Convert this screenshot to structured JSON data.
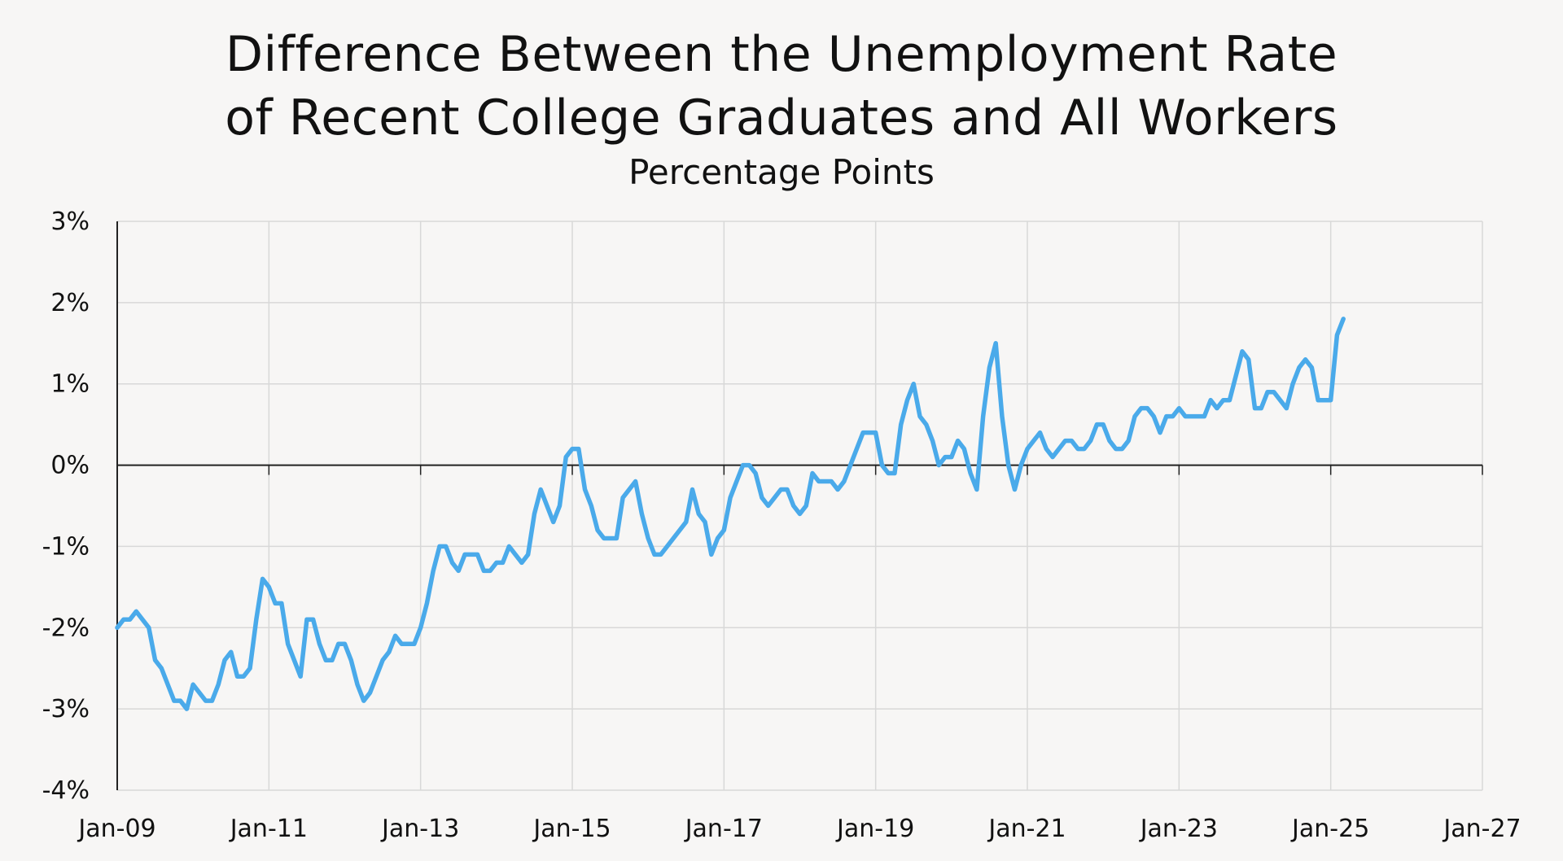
{
  "chart_data": {
    "type": "line",
    "title": "Difference Between the Unemployment Rate",
    "title_line2": "of Recent College Graduates and All Workers",
    "subtitle": "Percentage Points",
    "x_tick_labels": [
      "Jan-09",
      "Jan-11",
      "Jan-13",
      "Jan-15",
      "Jan-17",
      "Jan-19",
      "Jan-21",
      "Jan-23",
      "Jan-25",
      "Jan-27"
    ],
    "y_tick_labels": [
      "3%",
      "2%",
      "1%",
      "0%",
      "-1%",
      "-2%",
      "-3%",
      "-4%"
    ],
    "y_tick_values": [
      3,
      2,
      1,
      0,
      -1,
      -2,
      -3,
      -4
    ],
    "xlim": [
      "2009-01",
      "2027-01"
    ],
    "ylim": [
      -4,
      3
    ],
    "grid": true,
    "line_color": "#4aaaea",
    "series": [
      {
        "start": "2009-01",
        "frequency": "monthly",
        "values": [
          -2.0,
          -1.9,
          -1.9,
          -1.8,
          -1.9,
          -2.0,
          -2.4,
          -2.5,
          -2.7,
          -2.9,
          -2.9,
          -3.0,
          -2.7,
          -2.8,
          -2.9,
          -2.9,
          -2.7,
          -2.4,
          -2.3,
          -2.6,
          -2.6,
          -2.5,
          -1.9,
          -1.4,
          -1.5,
          -1.7,
          -1.7,
          -2.2,
          -2.4,
          -2.6,
          -1.9,
          -1.9,
          -2.2,
          -2.4,
          -2.4,
          -2.2,
          -2.2,
          -2.4,
          -2.7,
          -2.9,
          -2.8,
          -2.6,
          -2.4,
          -2.3,
          -2.1,
          -2.2,
          -2.2,
          -2.2,
          -2.0,
          -1.7,
          -1.3,
          -1.0,
          -1.0,
          -1.2,
          -1.3,
          -1.1,
          -1.1,
          -1.1,
          -1.3,
          -1.3,
          -1.2,
          -1.2,
          -1.0,
          -1.1,
          -1.2,
          -1.1,
          -0.6,
          -0.3,
          -0.5,
          -0.7,
          -0.5,
          0.1,
          0.2,
          0.2,
          -0.3,
          -0.5,
          -0.8,
          -0.9,
          -0.9,
          -0.9,
          -0.4,
          -0.3,
          -0.2,
          -0.6,
          -0.9,
          -1.1,
          -1.1,
          -1.0,
          -0.9,
          -0.8,
          -0.7,
          -0.3,
          -0.6,
          -0.7,
          -1.1,
          -0.9,
          -0.8,
          -0.4,
          -0.2,
          0.0,
          0.0,
          -0.1,
          -0.4,
          -0.5,
          -0.4,
          -0.3,
          -0.3,
          -0.5,
          -0.6,
          -0.5,
          -0.1,
          -0.2,
          -0.2,
          -0.2,
          -0.3,
          -0.2,
          0.0,
          0.2,
          0.4,
          0.4,
          0.4,
          0.0,
          -0.1,
          -0.1,
          0.5,
          0.8,
          1.0,
          0.6,
          0.5,
          0.3,
          0.0,
          0.1,
          0.1,
          0.3,
          0.2,
          -0.1,
          -0.3,
          0.6,
          1.2,
          1.5,
          0.6,
          0.0,
          -0.3,
          0.0,
          0.2,
          0.3,
          0.4,
          0.2,
          0.1,
          0.2,
          0.3,
          0.3,
          0.2,
          0.2,
          0.3,
          0.5,
          0.5,
          0.3,
          0.2,
          0.2,
          0.3,
          0.6,
          0.7,
          0.7,
          0.6,
          0.4,
          0.6,
          0.6,
          0.7,
          0.6,
          0.6,
          0.6,
          0.6,
          0.8,
          0.7,
          0.8,
          0.8,
          1.1,
          1.4,
          1.3,
          0.7,
          0.7,
          0.9,
          0.9,
          0.8,
          0.7,
          1.0,
          1.2,
          1.3,
          1.2,
          0.8,
          0.8,
          0.8,
          1.6,
          1.8
        ]
      }
    ]
  }
}
